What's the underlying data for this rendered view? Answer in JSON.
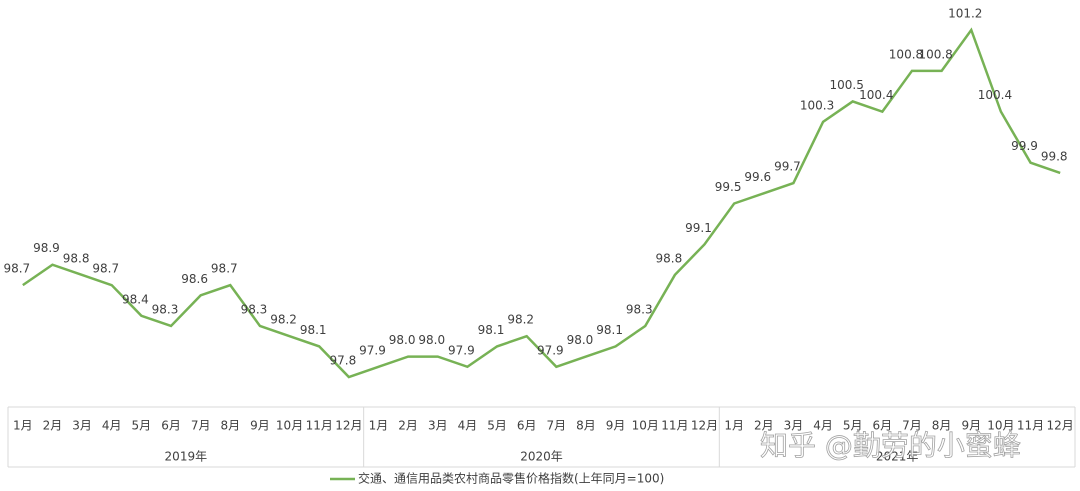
{
  "chart_data": {
    "type": "line",
    "categories": [
      "1月",
      "2月",
      "3月",
      "4月",
      "5月",
      "6月",
      "7月",
      "8月",
      "9月",
      "10月",
      "11月",
      "12月",
      "1月",
      "2月",
      "3月",
      "4月",
      "5月",
      "6月",
      "7月",
      "8月",
      "9月",
      "10月",
      "11月",
      "12月",
      "1月",
      "2月",
      "3月",
      "4月",
      "5月",
      "6月",
      "7月",
      "8月",
      "9月",
      "10月",
      "11月",
      "12月"
    ],
    "groups": [
      "2019年",
      "2020年",
      "2021年"
    ],
    "series": [
      {
        "name": "交通、通信用品类农村商品零售价格指数(上年同月=100)",
        "color": "#77b255",
        "values": [
          98.7,
          98.9,
          98.8,
          98.7,
          98.4,
          98.3,
          98.6,
          98.7,
          98.3,
          98.2,
          98.1,
          97.8,
          97.9,
          98.0,
          98.0,
          97.9,
          98.1,
          98.2,
          97.9,
          98.0,
          98.1,
          98.3,
          98.8,
          99.1,
          99.5,
          99.6,
          99.7,
          100.3,
          100.5,
          100.4,
          100.8,
          100.8,
          101.2,
          100.4,
          99.9,
          99.8
        ],
        "value_labels": [
          "98.7",
          "98.9",
          "98.8",
          "98.7",
          "98.4",
          "98.3",
          "98.6",
          "98.7",
          "98.3",
          "98.2",
          "98.1",
          "97.8",
          "97.9",
          "98.0",
          "98.0",
          "97.9",
          "98.1",
          "98.2",
          "97.9",
          "98.0",
          "98.1",
          "98.3",
          "98.8",
          "99.1",
          "99.5",
          "99.6",
          "99.7",
          "100.3",
          "100.5",
          "100.4",
          "100.8",
          "100.8",
          "101.2",
          "100.4",
          "99.9",
          "99.8"
        ]
      }
    ],
    "legend": "bottom",
    "watermark": "知乎 @勤劳的小蜜蜂"
  }
}
